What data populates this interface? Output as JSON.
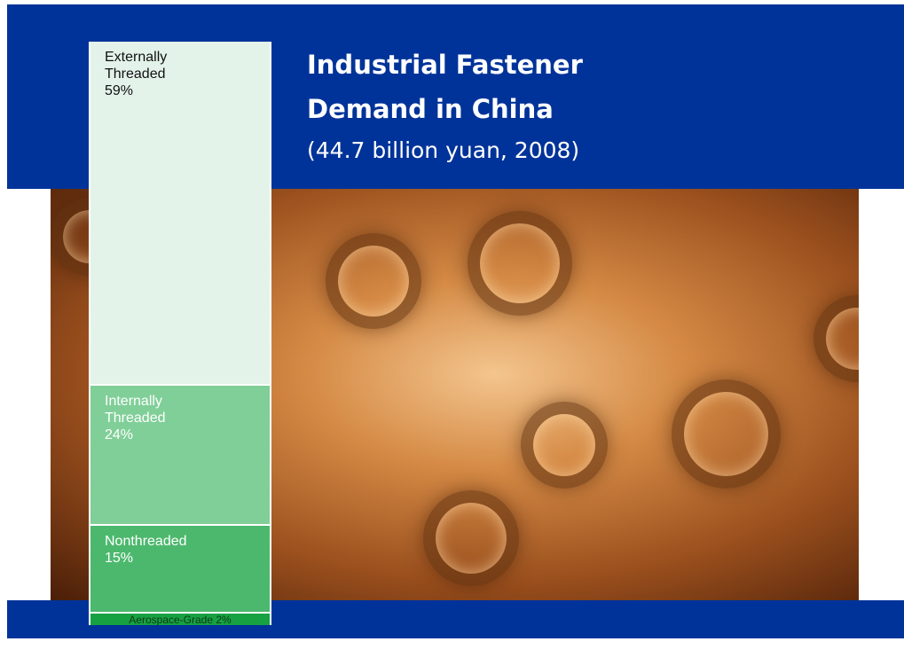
{
  "chart_data": {
    "type": "stacked-column",
    "title": "Industrial Fastener Demand in China",
    "subtitle": "(44.7 billion yuan, 2008)",
    "categories": [
      "Externally Threaded",
      "Internally Threaded",
      "Nonthreaded",
      "Aerospace-Grade"
    ],
    "values": [
      59,
      24,
      15,
      2
    ],
    "value_labels": [
      "59%",
      "24%",
      "15%",
      "2%"
    ],
    "colors": [
      "#e3f3ea",
      "#80cf98",
      "#4cb86d",
      "#17a142"
    ],
    "label_colors": [
      "#111111",
      "#ffffff",
      "#ffffff",
      "#0b3a18"
    ],
    "ylim": [
      0,
      100
    ]
  }
}
